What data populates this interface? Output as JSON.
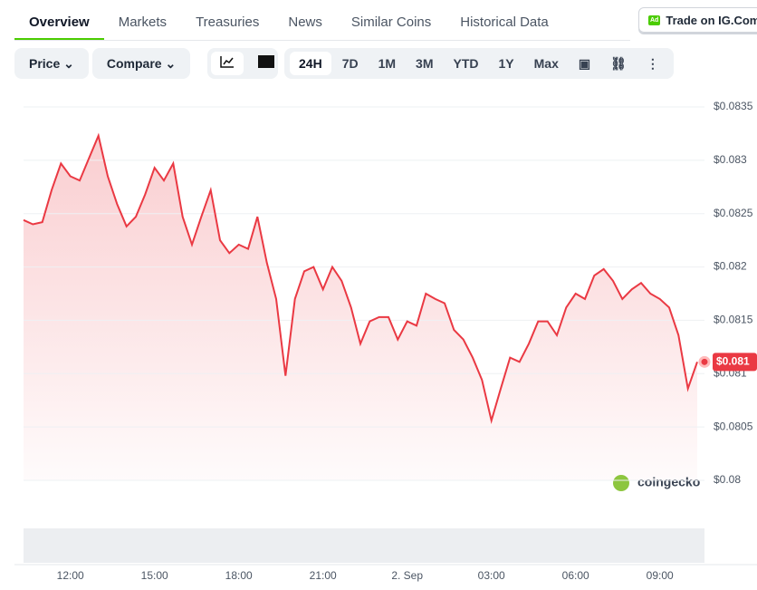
{
  "tabs": [
    "Overview",
    "Markets",
    "Treasuries",
    "News",
    "Similar Coins",
    "Historical Data"
  ],
  "ad": {
    "badge": "Ad",
    "text": "Trade on IG.Com"
  },
  "toolbar": {
    "selectors": [
      "Price",
      "Compare"
    ],
    "ranges": [
      "24H",
      "7D",
      "1M",
      "3M",
      "YTD",
      "1Y",
      "Max"
    ]
  },
  "watermark": "coingecko",
  "chart_data": {
    "type": "line",
    "categories": [
      null,
      null,
      null,
      null,
      null,
      "12:00",
      null,
      null,
      null,
      null,
      null,
      null,
      null,
      null,
      "15:00",
      null,
      null,
      null,
      null,
      null,
      null,
      null,
      null,
      "18:00",
      null,
      null,
      null,
      null,
      null,
      null,
      null,
      null,
      "21:00",
      null,
      null,
      null,
      null,
      null,
      null,
      null,
      null,
      "2. Sep",
      null,
      null,
      null,
      null,
      null,
      null,
      null,
      null,
      "03:00",
      null,
      null,
      null,
      null,
      null,
      null,
      null,
      null,
      "06:00",
      null,
      null,
      null,
      null,
      null,
      null,
      null,
      null,
      "09:00",
      null,
      null,
      null,
      null
    ],
    "series": [
      {
        "name": "Price",
        "color": "#ea3943",
        "values": [
          0.08244,
          0.0824,
          0.08242,
          0.08272,
          0.08297,
          0.08285,
          0.08281,
          0.08302,
          0.08323,
          0.08285,
          0.08259,
          0.08238,
          0.08247,
          0.08268,
          0.08293,
          0.08281,
          0.08297,
          0.08247,
          0.08221,
          0.08247,
          0.08272,
          0.08225,
          0.08213,
          0.08221,
          0.08217,
          0.08247,
          0.08204,
          0.0817,
          0.08098,
          0.0817,
          0.08196,
          0.082,
          0.08179,
          0.082,
          0.08187,
          0.08162,
          0.08128,
          0.08149,
          0.08153,
          0.08153,
          0.08132,
          0.08149,
          0.08145,
          0.08175,
          0.0817,
          0.08166,
          0.08141,
          0.08132,
          0.08115,
          0.08094,
          0.08056,
          0.08086,
          0.08115,
          0.08111,
          0.08128,
          0.08149,
          0.08149,
          0.08136,
          0.08162,
          0.08175,
          0.0817,
          0.08192,
          0.08198,
          0.08187,
          0.0817,
          0.08179,
          0.08185,
          0.08175,
          0.0817,
          0.08162,
          0.08136,
          0.08086,
          0.08111
        ]
      }
    ],
    "current_label": "$0.081",
    "ylim": [
      0.08,
      0.0835
    ],
    "yticks": [
      {
        "value": 0.08,
        "label": "$0.08"
      },
      {
        "value": 0.0805,
        "label": "$0.0805"
      },
      {
        "value": 0.081,
        "label": "$0.081"
      },
      {
        "value": 0.0815,
        "label": "$0.0815"
      },
      {
        "value": 0.082,
        "label": "$0.082"
      },
      {
        "value": 0.0825,
        "label": "$0.0825"
      },
      {
        "value": 0.083,
        "label": "$0.083"
      },
      {
        "value": 0.0835,
        "label": "$0.0835"
      }
    ],
    "grid": true
  }
}
